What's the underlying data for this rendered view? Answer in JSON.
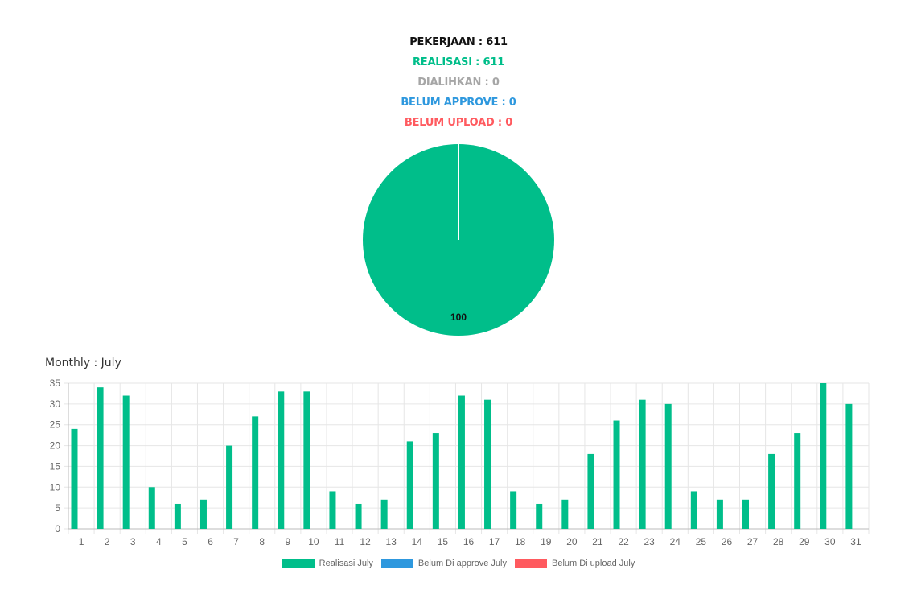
{
  "summary": {
    "pekerjaan": "PEKERJAAN : 611",
    "realisasi": "REALISASI : 611",
    "dialihkan": "DIALIHKAN : 0",
    "belum_approve": "BELUM APPROVE : 0",
    "belum_upload": "BELUM UPLOAD : 0"
  },
  "colors": {
    "green": "#00BE8A",
    "blue": "#2E98DE",
    "red": "#FF5A5F",
    "gray": "#A6A6A6",
    "black": "#111111"
  },
  "monthly_title": "Monthly : July",
  "chart_data": [
    {
      "type": "pie",
      "slices": [
        {
          "label": "Realisasi",
          "value": 100
        }
      ],
      "data_label": "100"
    },
    {
      "type": "bar",
      "categories": [
        "1",
        "2",
        "3",
        "4",
        "5",
        "6",
        "7",
        "8",
        "9",
        "10",
        "11",
        "12",
        "13",
        "14",
        "15",
        "16",
        "17",
        "18",
        "19",
        "20",
        "21",
        "22",
        "23",
        "24",
        "25",
        "26",
        "27",
        "28",
        "29",
        "30",
        "31"
      ],
      "series": [
        {
          "name": "Realisasi July",
          "color": "#00BE8A",
          "values": [
            24,
            34,
            32,
            10,
            6,
            7,
            20,
            27,
            33,
            33,
            9,
            6,
            7,
            21,
            23,
            32,
            31,
            9,
            6,
            7,
            18,
            26,
            31,
            30,
            9,
            7,
            7,
            18,
            23,
            35,
            30
          ]
        },
        {
          "name": "Belum Di approve July",
          "color": "#2E98DE",
          "values": [
            0,
            0,
            0,
            0,
            0,
            0,
            0,
            0,
            0,
            0,
            0,
            0,
            0,
            0,
            0,
            0,
            0,
            0,
            0,
            0,
            0,
            0,
            0,
            0,
            0,
            0,
            0,
            0,
            0,
            0,
            0
          ]
        },
        {
          "name": "Belum Di upload July",
          "color": "#FF5A5F",
          "values": [
            0,
            0,
            0,
            0,
            0,
            0,
            0,
            0,
            0,
            0,
            0,
            0,
            0,
            0,
            0,
            0,
            0,
            0,
            0,
            0,
            0,
            0,
            0,
            0,
            0,
            0,
            0,
            0,
            0,
            0,
            0
          ]
        }
      ],
      "yticks": [
        0,
        5,
        10,
        15,
        20,
        25,
        30,
        35
      ],
      "ylim": [
        0,
        35
      ],
      "grid": true,
      "legend": "bottom"
    }
  ]
}
